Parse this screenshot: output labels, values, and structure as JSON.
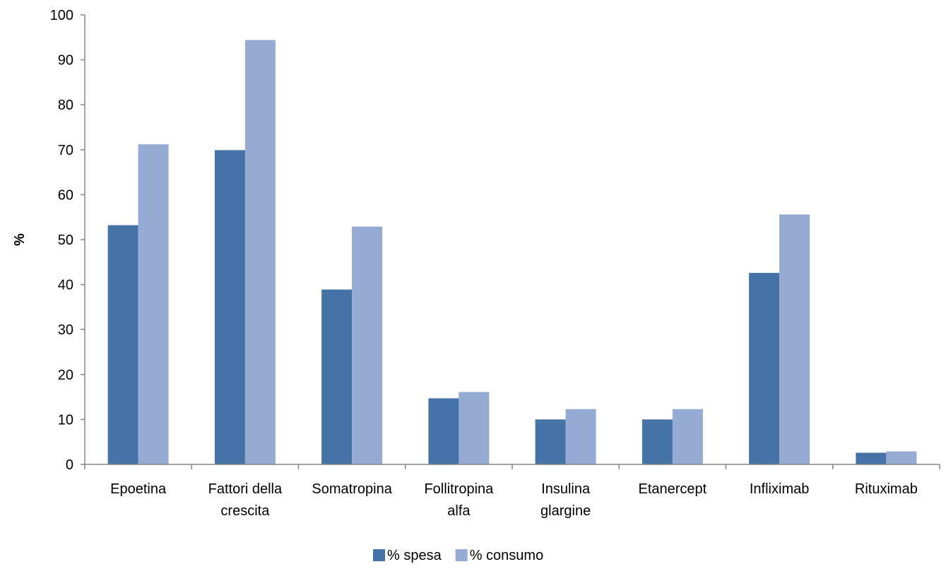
{
  "chart_data": {
    "type": "bar",
    "categories": [
      [
        "Epoetina"
      ],
      [
        "Fattori della",
        "crescita"
      ],
      [
        "Somatropina"
      ],
      [
        "Follitropina",
        "alfa"
      ],
      [
        "Insulina",
        "glargine"
      ],
      [
        "Etanercept"
      ],
      [
        "Infliximab"
      ],
      [
        "Rituximab"
      ]
    ],
    "series": [
      {
        "name": "% spesa",
        "color": "#4572A7",
        "values": [
          53.2,
          69.9,
          38.9,
          14.7,
          10.0,
          10.0,
          42.6,
          2.6
        ]
      },
      {
        "name": "% consumo",
        "color": "#95ABD3",
        "values": [
          71.2,
          94.4,
          52.9,
          16.1,
          12.3,
          12.3,
          55.6,
          2.9
        ]
      }
    ],
    "ylabel": "%",
    "xlabel": "",
    "ylim": [
      0,
      100
    ],
    "yticks": [
      "0",
      "10",
      "20",
      "30",
      "40",
      "50",
      "60",
      "70",
      "80",
      "90",
      "100"
    ],
    "grid": false,
    "legend_position": "bottom-center"
  }
}
